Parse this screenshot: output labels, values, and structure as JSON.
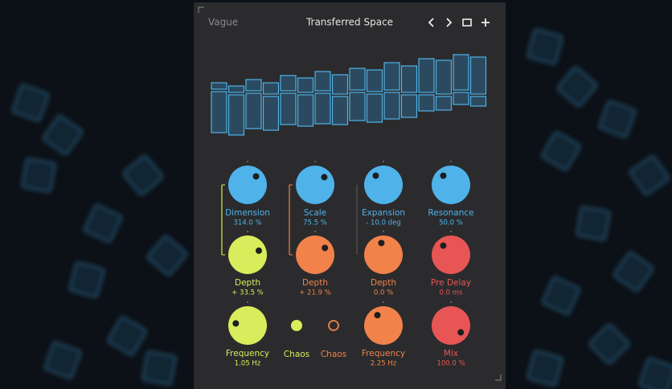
{
  "header": {
    "brand": "Vague",
    "title": "Transferred Space"
  },
  "knobs": [
    {
      "label": "Dimension",
      "value": "314.0 %"
    },
    {
      "label": "Scale",
      "value": "75.5 %"
    },
    {
      "label": "Expansion",
      "value": "- 10.0 deg"
    },
    {
      "label": "Resonance",
      "value": "50.0 %"
    },
    {
      "label": "Depth",
      "value": "+ 33.5 %"
    },
    {
      "label": "Depth",
      "value": "+ 21.9 %"
    },
    {
      "label": "Depth",
      "value": "0.0 %"
    },
    {
      "label": "Pre Delay",
      "value": "0.0 ms"
    },
    {
      "label": "Frequency",
      "value": "1.05 Hz"
    },
    {
      "label": "Chaos"
    },
    {
      "label": "Chaos"
    },
    {
      "label": "Frequency",
      "value": "2.25 Hz"
    },
    {
      "label": "Mix",
      "value": "100.0 %"
    }
  ]
}
